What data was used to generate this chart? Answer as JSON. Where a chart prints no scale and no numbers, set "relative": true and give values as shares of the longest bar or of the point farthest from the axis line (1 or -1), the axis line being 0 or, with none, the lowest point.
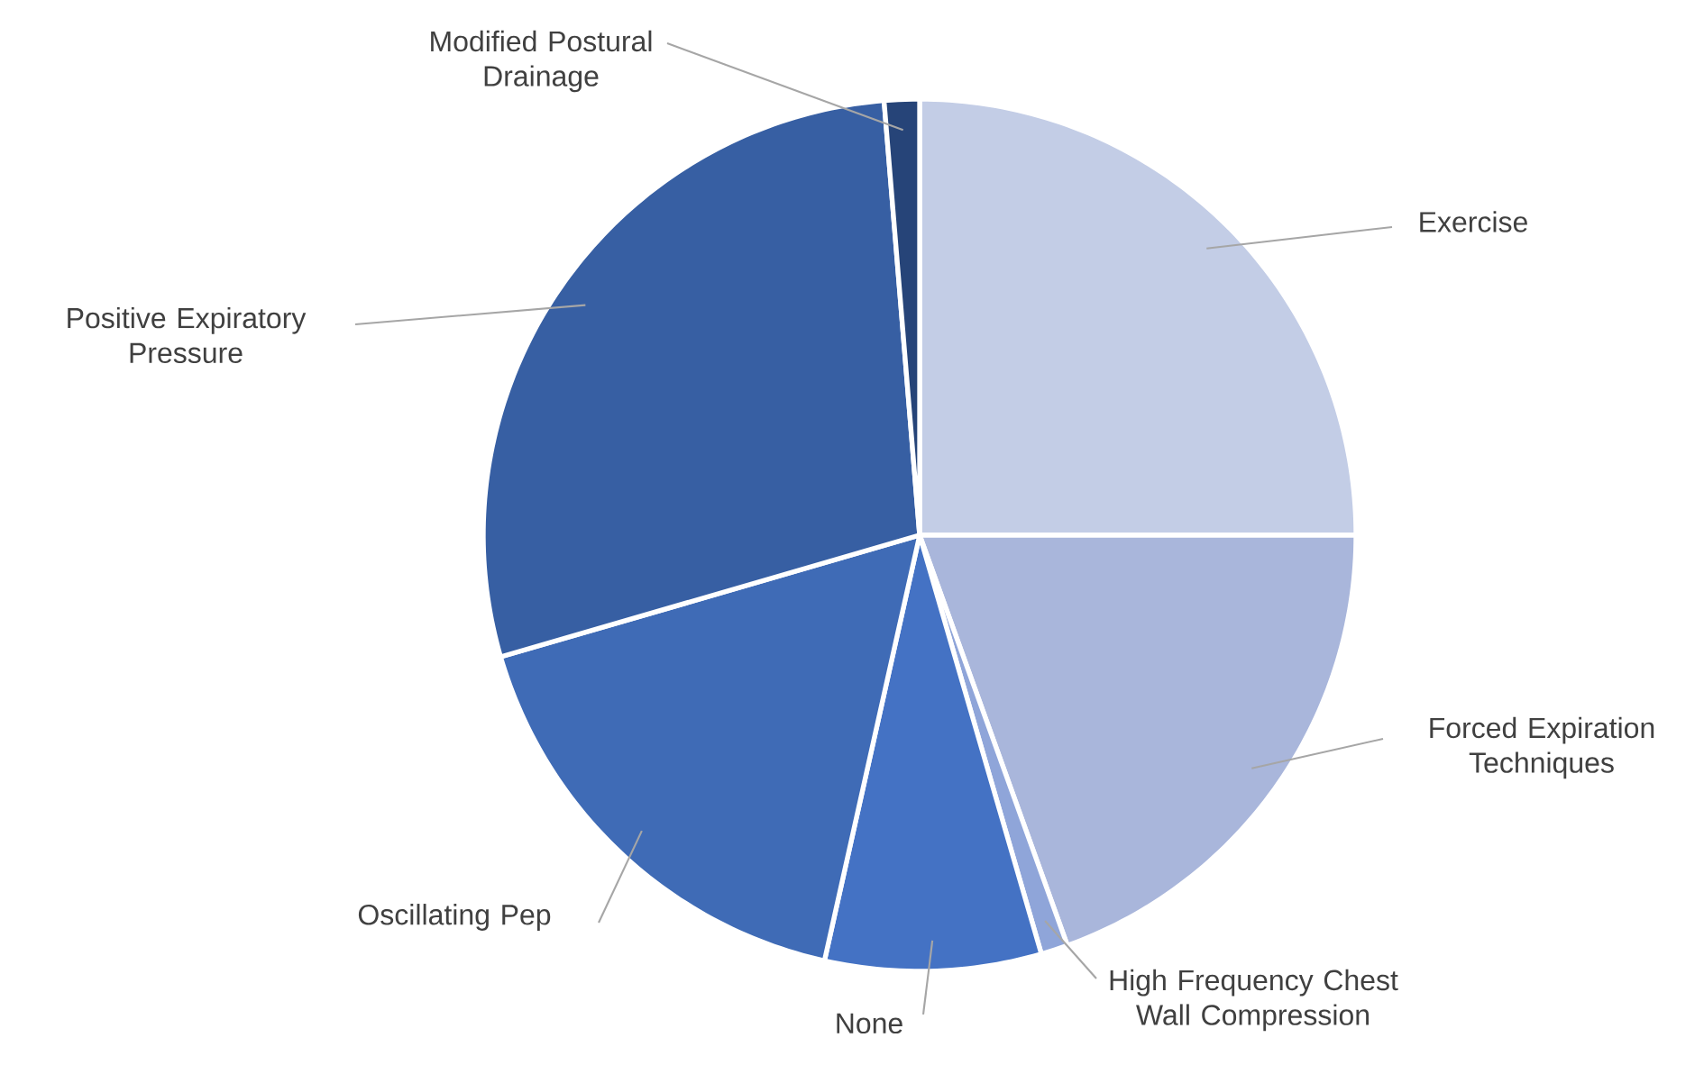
{
  "chart_data": {
    "type": "pie",
    "relative": true,
    "categories": [
      "Exercise",
      "Forced Expiration Techniques",
      "High Frequency Chest Wall Compression",
      "None",
      "Oscillating Pep",
      "Positive Expiratory Pressure",
      "Modified Postural Drainage"
    ],
    "values": [
      25,
      19.5,
      1,
      8,
      17,
      28.2,
      1.3
    ],
    "colors": [
      "#c3cde6",
      "#a9b6db",
      "#8fa5d9",
      "#4472c4",
      "#3f6bb6",
      "#375fa3",
      "#264478"
    ]
  }
}
